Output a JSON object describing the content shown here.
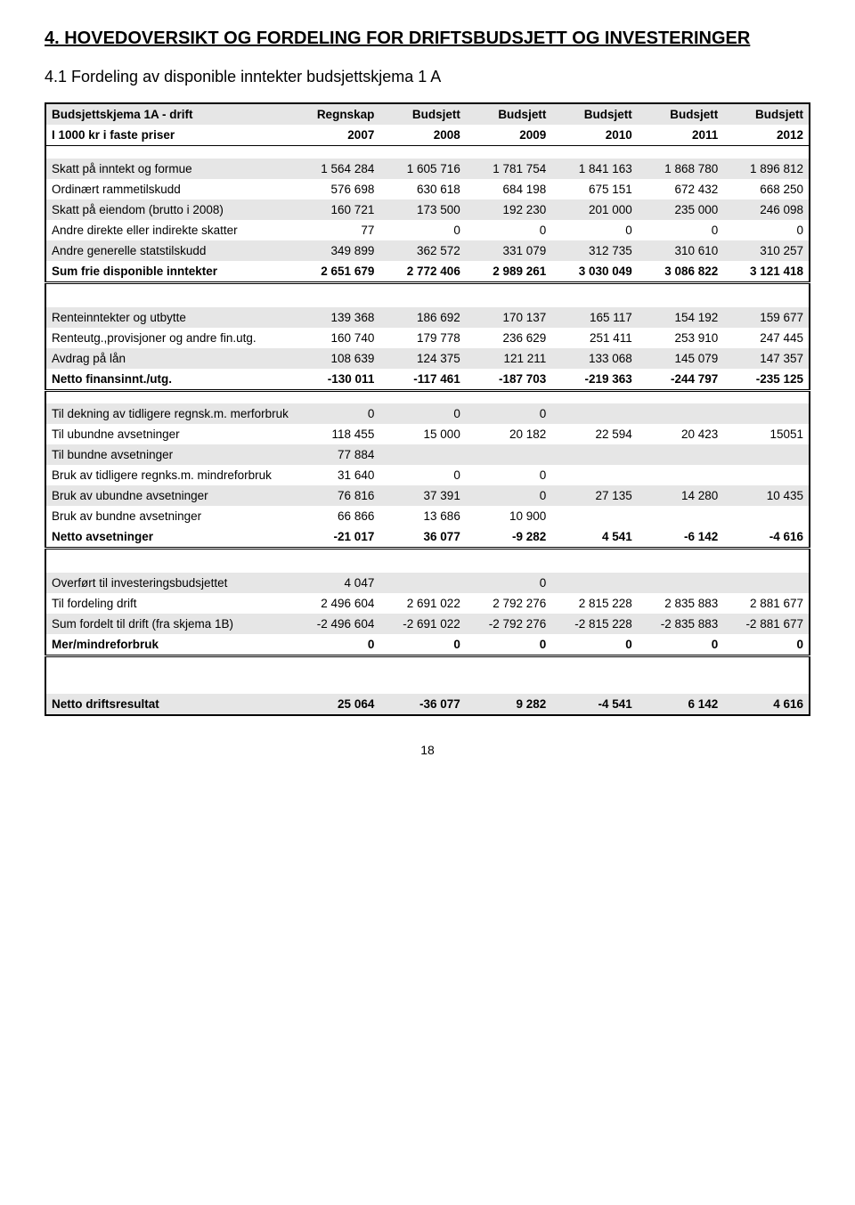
{
  "headings": {
    "main": "4. HOVEDOVERSIKT OG FORDELING FOR DRIFTSBUDSJETT OG INVESTERINGER",
    "sub": "4.1 Fordeling av disponible inntekter budsjettskjema 1 A"
  },
  "pagenum": "18",
  "table": {
    "header1": [
      "Budsjettskjema 1A - drift",
      "Regnskap",
      "Budsjett",
      "Budsjett",
      "Budsjett",
      "Budsjett",
      "Budsjett"
    ],
    "header2": [
      "I 1000 kr i faste priser",
      "2007",
      "2008",
      "2009",
      "2010",
      "2011",
      "2012"
    ],
    "rows_block1": [
      {
        "label": "Skatt på inntekt og formue",
        "vals": [
          "1 564 284",
          "1 605 716",
          "1 781 754",
          "1 841 163",
          "1 868 780",
          "1 896 812"
        ],
        "shaded": true
      },
      {
        "label": "Ordinært rammetilskudd",
        "vals": [
          "576 698",
          "630 618",
          "684 198",
          "675 151",
          "672 432",
          "668 250"
        ],
        "shaded": false
      },
      {
        "label": "Skatt på eiendom (brutto i 2008)",
        "vals": [
          "160 721",
          "173 500",
          "192 230",
          "201 000",
          "235 000",
          "246 098"
        ],
        "shaded": true
      },
      {
        "label": "Andre direkte eller indirekte skatter",
        "vals": [
          "77",
          "0",
          "0",
          "0",
          "0",
          "0"
        ],
        "shaded": false
      },
      {
        "label": "Andre generelle statstilskudd",
        "vals": [
          "349 899",
          "362 572",
          "331 079",
          "312 735",
          "310 610",
          "310 257"
        ],
        "shaded": true
      }
    ],
    "sum1": {
      "label": "Sum frie disponible inntekter",
      "vals": [
        "2 651 679",
        "2 772 406",
        "2 989 261",
        "3 030 049",
        "3 086 822",
        "3 121 418"
      ]
    },
    "rows_block2": [
      {
        "label": "Renteinntekter og utbytte",
        "vals": [
          "139 368",
          "186 692",
          "170 137",
          "165 117",
          "154 192",
          "159 677"
        ],
        "shaded": true
      },
      {
        "label": "Renteutg.,provisjoner og andre fin.utg.",
        "vals": [
          "160 740",
          "179 778",
          "236 629",
          "251 411",
          "253 910",
          "247 445"
        ],
        "shaded": false
      },
      {
        "label": "Avdrag på lån",
        "vals": [
          "108 639",
          "124 375",
          "121 211",
          "133 068",
          "145 079",
          "147 357"
        ],
        "shaded": true
      }
    ],
    "sum2": {
      "label": "Netto finansinnt./utg.",
      "vals": [
        "-130 011",
        "-117 461",
        "-187 703",
        "-219 363",
        "-244 797",
        "-235 125"
      ]
    },
    "rows_block3": [
      {
        "label": "Til dekning av tidligere regnsk.m. merforbruk",
        "vals": [
          "0",
          "0",
          "0",
          "",
          "",
          ""
        ],
        "shaded": true
      },
      {
        "label": "Til ubundne avsetninger",
        "vals": [
          "118 455",
          "15 000",
          "20 182",
          "22 594",
          "20 423",
          "15051"
        ],
        "shaded": false
      },
      {
        "label": "Til bundne avsetninger",
        "vals": [
          "77 884",
          "",
          "",
          "",
          "",
          ""
        ],
        "shaded": true
      },
      {
        "label": "Bruk av tidligere regnks.m. mindreforbruk",
        "vals": [
          "31 640",
          "0",
          "0",
          "",
          "",
          ""
        ],
        "shaded": false
      },
      {
        "label": "Bruk av ubundne avsetninger",
        "vals": [
          "76 816",
          "37 391",
          "0",
          "27 135",
          "14 280",
          "10 435"
        ],
        "shaded": true
      },
      {
        "label": "Bruk av bundne avsetninger",
        "vals": [
          "66 866",
          "13 686",
          "10 900",
          "",
          "",
          ""
        ],
        "shaded": false
      }
    ],
    "sum3": {
      "label": "Netto avsetninger",
      "vals": [
        "-21 017",
        "36 077",
        "-9 282",
        "4 541",
        "-6 142",
        "-4 616"
      ]
    },
    "rows_block4": [
      {
        "label": "Overført til investeringsbudsjettet",
        "vals": [
          "4 047",
          "",
          "0",
          "",
          "",
          ""
        ],
        "shaded": true
      },
      {
        "label": "Til fordeling drift",
        "vals": [
          "2 496 604",
          "2 691 022",
          "2 792 276",
          "2 815 228",
          "2 835 883",
          "2 881 677"
        ],
        "shaded": false
      },
      {
        "label": "Sum fordelt til drift (fra skjema 1B)",
        "vals": [
          "-2 496 604",
          "-2 691 022",
          "-2 792 276",
          "-2 815 228",
          "-2 835 883",
          "-2 881 677"
        ],
        "shaded": true
      }
    ],
    "sum4": {
      "label": "Mer/mindreforbruk",
      "vals": [
        "0",
        "0",
        "0",
        "0",
        "0",
        "0"
      ]
    },
    "sum5": {
      "label": "Netto driftsresultat",
      "vals": [
        "25 064",
        "-36 077",
        "9 282",
        "-4 541",
        "6 142",
        "4 616"
      ]
    }
  }
}
